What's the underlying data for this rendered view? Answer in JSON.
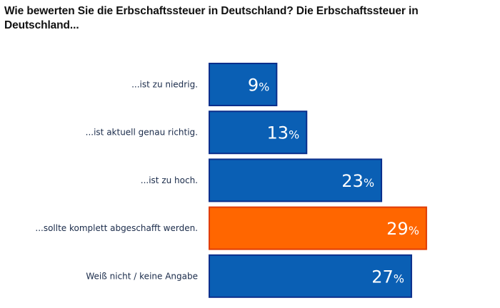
{
  "chart_data": {
    "type": "bar",
    "orientation": "horizontal",
    "title": "Wie bewerten Sie die Erbschaftssteuer in Deutschland? Die Erbschaftssteuer in Deutschland...",
    "categories": [
      "...ist zu niedrig.",
      "...ist aktuell genau richtig.",
      "...ist zu hoch.",
      "...sollte komplett abgeschafft werden.",
      "Weiß nicht / keine Angabe"
    ],
    "values": [
      9,
      13,
      23,
      29,
      27
    ],
    "value_suffix": "%",
    "data_labels": [
      "9",
      "13",
      "23",
      "29",
      "27"
    ],
    "highlight_index": 3,
    "xlabel": "",
    "ylabel": "",
    "xlim": [
      0,
      29
    ],
    "grid": false,
    "legend": "none"
  },
  "colors": {
    "bar": "#0a5fb4",
    "bar_border": "#0b2f8c",
    "highlight": "#ff6600",
    "highlight_border": "#e03c00"
  }
}
